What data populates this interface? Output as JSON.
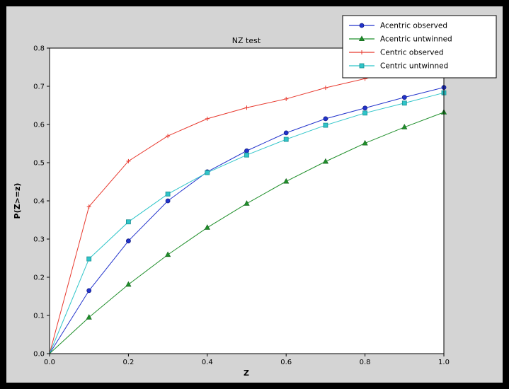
{
  "figure": {
    "frame_color": "#000000",
    "background_color": "#d4d4d4",
    "plot_background": "#ffffff",
    "axis_color": "#000000"
  },
  "chart_data": {
    "type": "line",
    "title": "NZ test",
    "xlabel": "Z",
    "ylabel": "P(Z>=z)",
    "xlim": [
      0.0,
      1.0
    ],
    "ylim": [
      0.0,
      0.8
    ],
    "grid": false,
    "legend_position": "upper right",
    "xticks": [
      {
        "v": 0.0,
        "label": "0.0"
      },
      {
        "v": 0.2,
        "label": "0.2"
      },
      {
        "v": 0.4,
        "label": "0.4"
      },
      {
        "v": 0.6,
        "label": "0.6"
      },
      {
        "v": 0.8,
        "label": "0.8"
      },
      {
        "v": 1.0,
        "label": "1.0"
      }
    ],
    "yticks": [
      {
        "v": 0.0,
        "label": "0.0"
      },
      {
        "v": 0.1,
        "label": "0.1"
      },
      {
        "v": 0.2,
        "label": "0.2"
      },
      {
        "v": 0.3,
        "label": "0.3"
      },
      {
        "v": 0.4,
        "label": "0.4"
      },
      {
        "v": 0.5,
        "label": "0.5"
      },
      {
        "v": 0.6,
        "label": "0.6"
      },
      {
        "v": 0.7,
        "label": "0.7"
      },
      {
        "v": 0.8,
        "label": "0.8"
      }
    ],
    "x": [
      0.0,
      0.1,
      0.2,
      0.3,
      0.4,
      0.5,
      0.6,
      0.7,
      0.8,
      0.9,
      1.0
    ],
    "series": [
      {
        "name": "Acentric observed",
        "color": "#2233cc",
        "edge": "#111a80",
        "marker": "circle",
        "values": [
          0.0,
          0.165,
          0.295,
          0.4,
          0.476,
          0.531,
          0.578,
          0.615,
          0.643,
          0.671,
          0.697
        ]
      },
      {
        "name": "Acentric untwinned",
        "color": "#1f8f2a",
        "edge": "#14611c",
        "marker": "triangle",
        "values": [
          0.0,
          0.095,
          0.181,
          0.259,
          0.33,
          0.393,
          0.451,
          0.503,
          0.551,
          0.593,
          0.632
        ]
      },
      {
        "name": "Centric observed",
        "color": "#e8392e",
        "edge": "#a82218",
        "marker": "plus",
        "values": [
          0.0,
          0.385,
          0.504,
          0.57,
          0.615,
          0.644,
          0.667,
          0.696,
          0.72,
          0.742,
          0.758
        ]
      },
      {
        "name": "Centric untwinned",
        "color": "#2fc5c9",
        "edge": "#1a8e91",
        "marker": "square",
        "values": [
          0.0,
          0.248,
          0.345,
          0.418,
          0.474,
          0.52,
          0.561,
          0.598,
          0.63,
          0.656,
          0.683
        ]
      }
    ]
  }
}
